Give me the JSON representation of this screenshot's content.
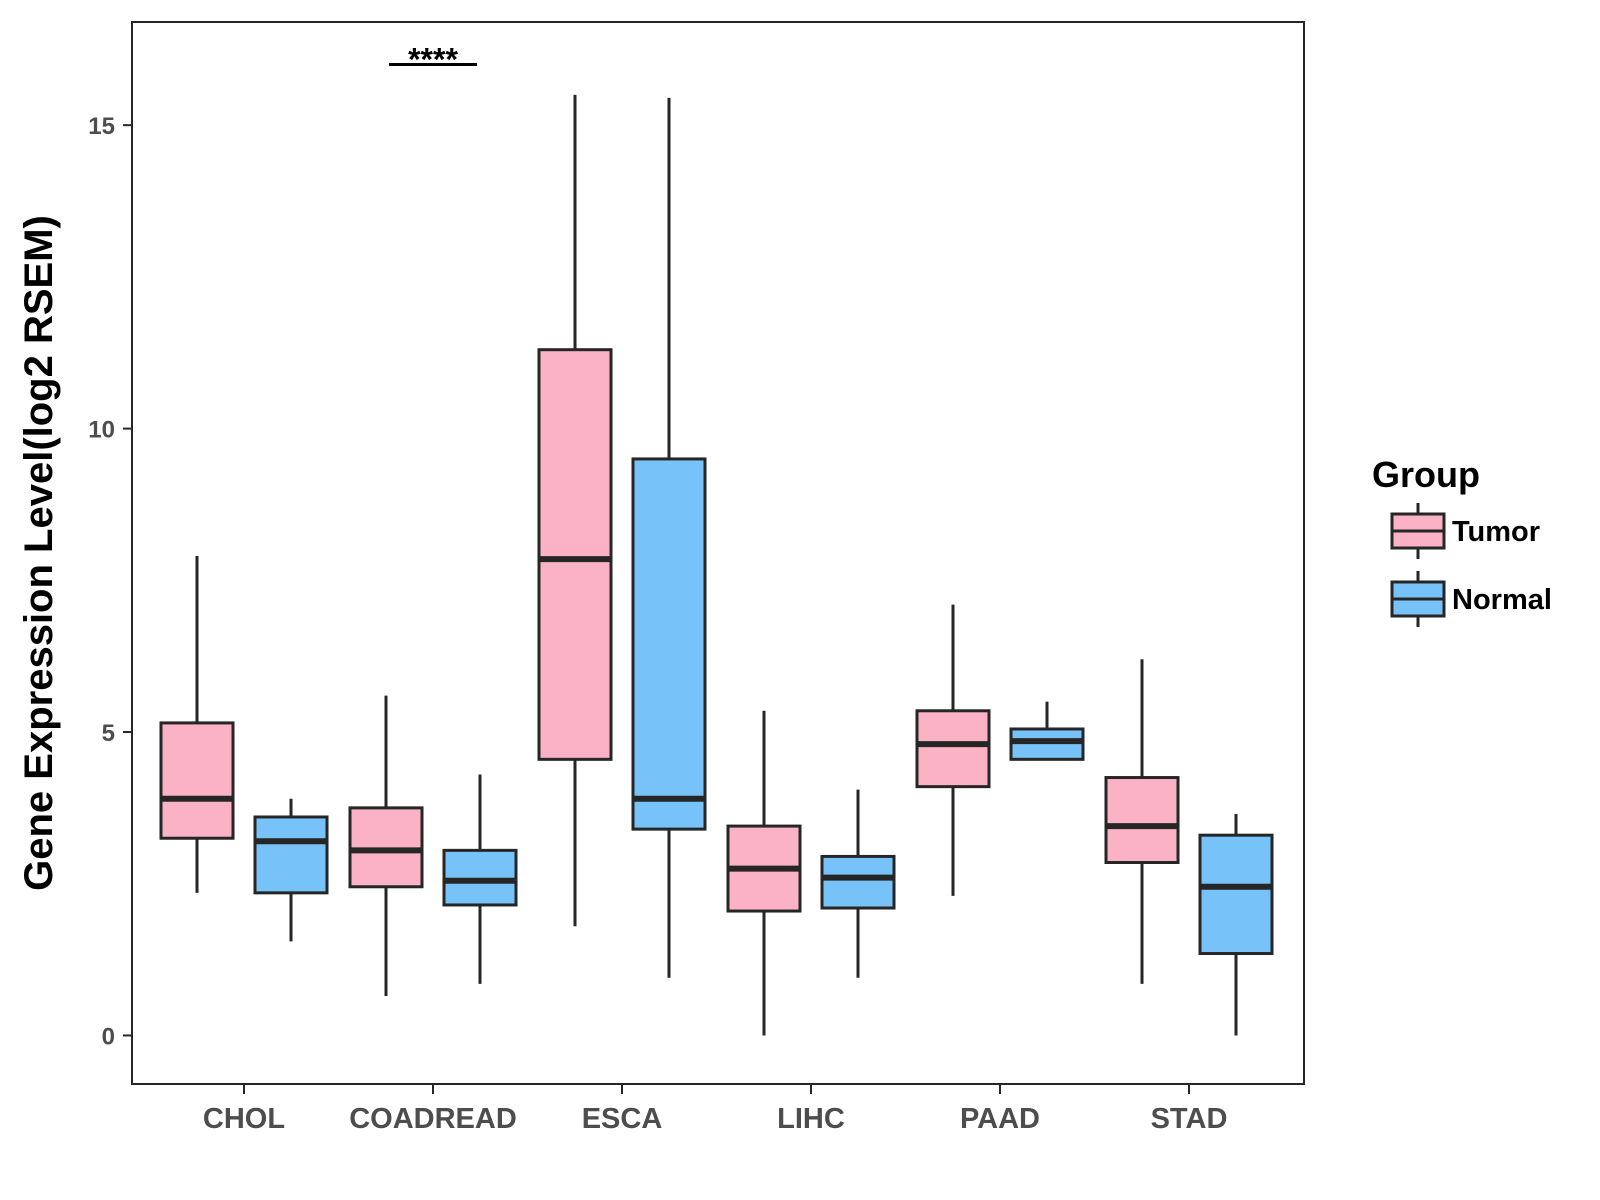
{
  "chart_data": {
    "type": "boxplot",
    "title": "",
    "xlabel": "",
    "ylabel": "Gene Expression Level(log2 RSEM)",
    "ylim": [
      -0.8,
      16.7
    ],
    "yticks": [
      0,
      5,
      10,
      15
    ],
    "grid": false,
    "legend": {
      "title": "Group",
      "position": "right",
      "entries": [
        "Tumor",
        "Normal"
      ]
    },
    "colors": {
      "Tumor": "#fbb2c5",
      "Normal": "#78c2fa",
      "outline": "#262626"
    },
    "categories": [
      "CHOL",
      "COADREAD",
      "ESCA",
      "LIHC",
      "PAAD",
      "STAD"
    ],
    "series": [
      {
        "name": "Tumor",
        "boxes": [
          {
            "min": 2.35,
            "q1": 3.25,
            "median": 3.9,
            "q3": 5.15,
            "max": 7.9
          },
          {
            "min": 0.65,
            "q1": 2.45,
            "median": 3.05,
            "q3": 3.75,
            "max": 5.6
          },
          {
            "min": 1.8,
            "q1": 4.55,
            "median": 7.85,
            "q3": 11.3,
            "max": 15.5
          },
          {
            "min": 0.0,
            "q1": 2.05,
            "median": 2.75,
            "q3": 3.45,
            "max": 5.35
          },
          {
            "min": 2.3,
            "q1": 4.1,
            "median": 4.8,
            "q3": 5.35,
            "max": 7.1
          },
          {
            "min": 0.85,
            "q1": 2.85,
            "median": 3.45,
            "q3": 4.25,
            "max": 6.2
          }
        ]
      },
      {
        "name": "Normal",
        "boxes": [
          {
            "min": 1.55,
            "q1": 2.35,
            "median": 3.2,
            "q3": 3.6,
            "max": 3.9
          },
          {
            "min": 0.85,
            "q1": 2.15,
            "median": 2.55,
            "q3": 3.05,
            "max": 4.3
          },
          {
            "min": 0.95,
            "q1": 3.4,
            "median": 3.9,
            "q3": 9.5,
            "max": 15.45
          },
          {
            "min": 0.95,
            "q1": 2.1,
            "median": 2.6,
            "q3": 2.95,
            "max": 4.05
          },
          {
            "min": 4.55,
            "q1": 4.55,
            "median": 4.85,
            "q3": 5.05,
            "max": 5.5
          },
          {
            "min": 0.0,
            "q1": 1.35,
            "median": 2.45,
            "q3": 3.3,
            "max": 3.65
          }
        ]
      }
    ],
    "annotations": [
      {
        "category": "COADREAD",
        "label": "****",
        "y": 16.0
      }
    ]
  }
}
